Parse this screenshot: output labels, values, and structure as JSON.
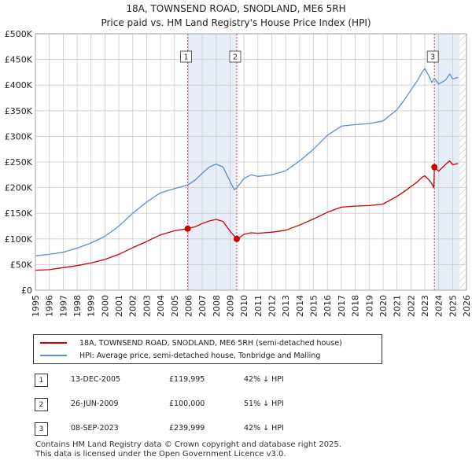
{
  "title_line1": "18A, TOWNSEND ROAD, SNODLAND, ME6 5RH",
  "title_line2": "Price paid vs. HM Land Registry's House Price Index (HPI)",
  "legend": [
    {
      "label": "18A, TOWNSEND ROAD, SNODLAND, ME6 5RH (semi-detached house)",
      "color": "#cc0000"
    },
    {
      "label": "HPI: Average price, semi-detached house, Tonbridge and Malling",
      "color": "#5b8fd6"
    }
  ],
  "transactions": [
    {
      "num": "1",
      "date": "13-DEC-2005",
      "price": "£119,995",
      "hpi": "42% ↓ HPI"
    },
    {
      "num": "2",
      "date": "26-JUN-2009",
      "price": "£100,000",
      "hpi": "51% ↓ HPI"
    },
    {
      "num": "3",
      "date": "08-SEP-2023",
      "price": "£239,999",
      "hpi": "42% ↓ HPI"
    }
  ],
  "footer_line1": "Contains HM Land Registry data © Crown copyright and database right 2025.",
  "footer_line2": "This data is licensed under the Open Government Licence v3.0.",
  "colors": {
    "price": "#cc0000",
    "hpi": "#5b8fd6",
    "shade": "#e8eef8",
    "grid": "#cccccc",
    "marker": "#cc0000",
    "vline": "#dd4444"
  },
  "chart_data": {
    "type": "line",
    "x_ticks": [
      1995,
      1996,
      1997,
      1998,
      1999,
      2000,
      2001,
      2002,
      2003,
      2004,
      2005,
      2006,
      2007,
      2008,
      2009,
      2010,
      2011,
      2012,
      2013,
      2014,
      2015,
      2016,
      2017,
      2018,
      2019,
      2020,
      2021,
      2022,
      2023,
      2024,
      2025,
      2026
    ],
    "y_ticks": [
      0,
      50000,
      100000,
      150000,
      200000,
      250000,
      300000,
      350000,
      400000,
      450000,
      500000
    ],
    "y_tick_labels": [
      "£0",
      "£50K",
      "£100K",
      "£150K",
      "£200K",
      "£250K",
      "£300K",
      "£350K",
      "£400K",
      "£450K",
      "£500K"
    ],
    "xlim": [
      1995,
      2026
    ],
    "ylim": [
      0,
      500000
    ],
    "shaded_ranges": [
      [
        2005.95,
        2009.48
      ],
      [
        2023.69,
        2025.5
      ]
    ],
    "future_hatch_from": 2025.5,
    "series": [
      {
        "name": "HPI: Average price, semi-detached house, Tonbridge and Malling",
        "x": [
          1995.0,
          1996.0,
          1997.0,
          1998.0,
          1999.0,
          2000.0,
          2001.0,
          2002.0,
          2003.0,
          2004.0,
          2005.0,
          2005.95,
          2006.5,
          2007.0,
          2007.5,
          2008.0,
          2008.5,
          2009.0,
          2009.3,
          2009.5,
          2010.0,
          2010.5,
          2011.0,
          2012.0,
          2013.0,
          2014.0,
          2015.0,
          2016.0,
          2017.0,
          2018.0,
          2019.0,
          2020.0,
          2021.0,
          2021.5,
          2022.0,
          2022.5,
          2022.8,
          2023.0,
          2023.3,
          2023.5,
          2023.69,
          2024.0,
          2024.5,
          2024.8,
          2025.0,
          2025.4
        ],
        "values": [
          67000,
          70000,
          74000,
          82000,
          92000,
          105000,
          125000,
          150000,
          172000,
          190000,
          198000,
          205000,
          215000,
          228000,
          240000,
          246000,
          240000,
          212000,
          196000,
          200000,
          218000,
          225000,
          222000,
          225000,
          233000,
          252000,
          275000,
          302000,
          320000,
          323000,
          325000,
          330000,
          352000,
          370000,
          390000,
          410000,
          425000,
          432000,
          418000,
          405000,
          413000,
          402000,
          410000,
          422000,
          412000,
          415000
        ]
      },
      {
        "name": "18A, TOWNSEND ROAD, SNODLAND, ME6 5RH (semi-detached house)",
        "x": [
          1995.0,
          1996.0,
          1997.0,
          1998.0,
          1999.0,
          2000.0,
          2001.0,
          2002.0,
          2003.0,
          2004.0,
          2005.0,
          2005.95,
          2006.5,
          2007.0,
          2007.5,
          2008.0,
          2008.5,
          2009.0,
          2009.48,
          2009.7,
          2010.0,
          2010.5,
          2011.0,
          2012.0,
          2013.0,
          2014.0,
          2015.0,
          2016.0,
          2017.0,
          2018.0,
          2019.0,
          2020.0,
          2021.0,
          2021.5,
          2022.0,
          2022.5,
          2022.8,
          2023.0,
          2023.3,
          2023.5,
          2023.65,
          2023.69,
          2024.0,
          2024.3,
          2024.6,
          2024.8,
          2025.0,
          2025.4
        ],
        "values": [
          39000,
          40000,
          44000,
          48000,
          53000,
          60000,
          70000,
          83000,
          95000,
          108000,
          116000,
          119995,
          124000,
          130000,
          135000,
          138000,
          134000,
          115000,
          100000,
          103000,
          109000,
          112000,
          111000,
          113000,
          117000,
          127000,
          139000,
          152000,
          162000,
          164000,
          165000,
          168000,
          183000,
          192000,
          202000,
          212000,
          220000,
          223000,
          215000,
          208000,
          200000,
          239999,
          232000,
          240000,
          248000,
          252000,
          245000,
          247000
        ]
      }
    ],
    "sale_markers": [
      {
        "num": "1",
        "x": 2005.95,
        "value": 119995
      },
      {
        "num": "2",
        "x": 2009.48,
        "value": 100000
      },
      {
        "num": "3",
        "x": 2023.69,
        "value": 239999
      }
    ]
  }
}
